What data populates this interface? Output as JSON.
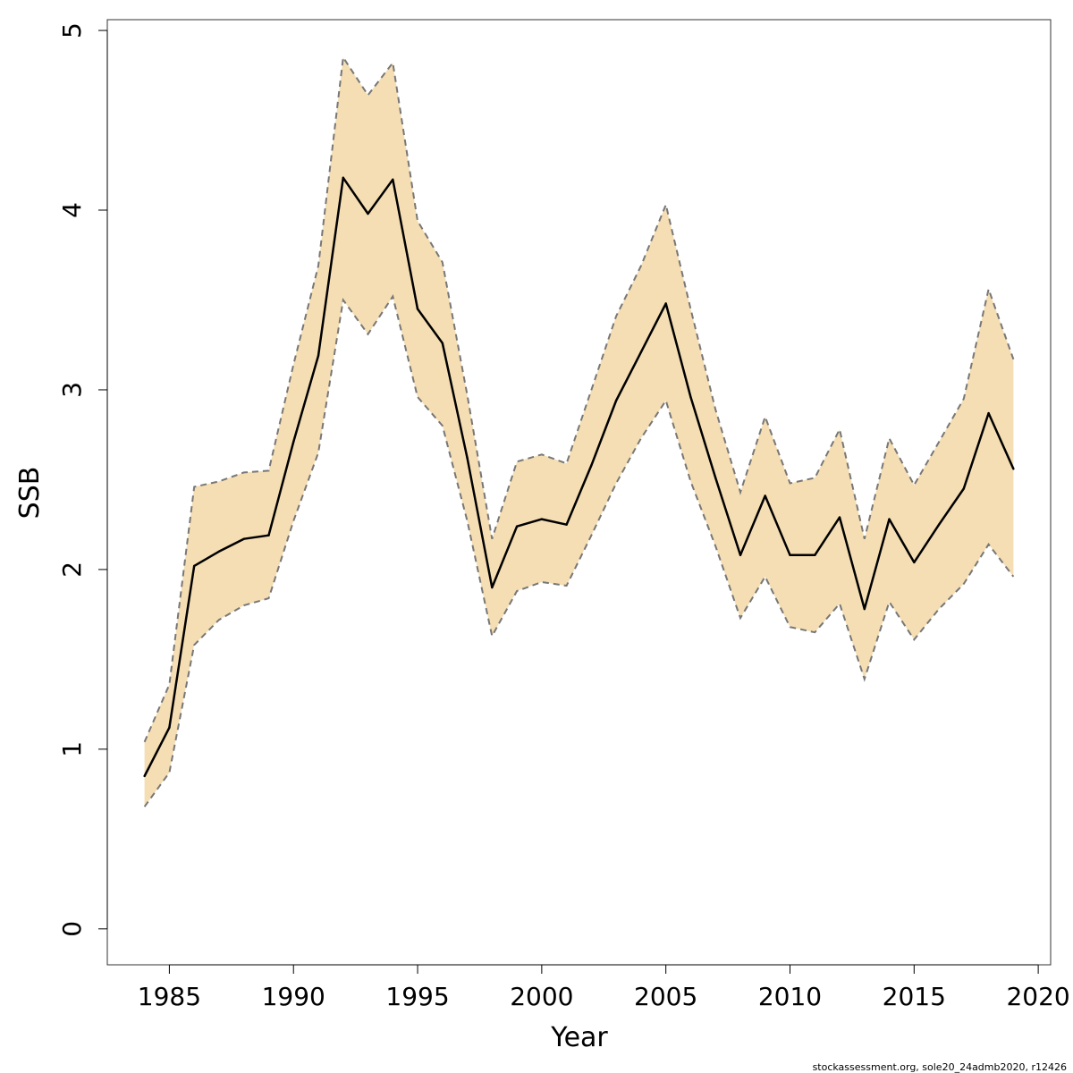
{
  "chart_data": {
    "type": "line",
    "xlabel": "Year",
    "ylabel": "SSB",
    "xlim": [
      1982.5,
      2020.5
    ],
    "ylim": [
      -0.2,
      5.06
    ],
    "x_ticks": [
      1985,
      1990,
      1995,
      2000,
      2005,
      2010,
      2015,
      2020
    ],
    "y_ticks": [
      0,
      1,
      2,
      3,
      4,
      5
    ],
    "x": [
      1984,
      1985,
      1986,
      1987,
      1988,
      1989,
      1990,
      1991,
      1992,
      1993,
      1994,
      1995,
      1996,
      1997,
      1998,
      1999,
      2000,
      2001,
      2002,
      2003,
      2004,
      2005,
      2006,
      2007,
      2008,
      2009,
      2010,
      2011,
      2012,
      2013,
      2014,
      2015,
      2016,
      2017,
      2018,
      2019
    ],
    "band_lower": [
      0.68,
      0.87,
      1.58,
      1.72,
      1.8,
      1.84,
      2.27,
      2.65,
      3.5,
      3.31,
      3.52,
      2.96,
      2.8,
      2.27,
      1.63,
      1.88,
      1.93,
      1.91,
      2.19,
      2.48,
      2.73,
      2.94,
      2.49,
      2.13,
      1.73,
      1.96,
      1.68,
      1.65,
      1.81,
      1.39,
      1.82,
      1.61,
      1.78,
      1.92,
      2.14,
      1.96
    ],
    "series": [
      {
        "values": [
          0.85,
          1.12,
          2.02,
          2.1,
          2.17,
          2.19,
          2.71,
          3.19,
          4.18,
          3.98,
          4.17,
          3.45,
          3.26,
          2.62,
          1.9,
          2.24,
          2.28,
          2.25,
          2.58,
          2.94,
          3.21,
          3.48,
          2.96,
          2.51,
          2.08,
          2.41,
          2.08,
          2.08,
          2.29,
          1.78,
          2.28,
          2.04,
          2.25,
          2.45,
          2.87,
          2.56
        ]
      },
      {
        "style": "dashed",
        "values": [
          1.04,
          1.36,
          2.46,
          2.49,
          2.54,
          2.55,
          3.14,
          3.69,
          4.85,
          4.64,
          4.82,
          3.94,
          3.71,
          2.97,
          2.17,
          2.6,
          2.64,
          2.59,
          3.0,
          3.41,
          3.69,
          4.03,
          3.45,
          2.89,
          2.43,
          2.85,
          2.48,
          2.51,
          2.78,
          2.17,
          2.73,
          2.47,
          2.71,
          2.95,
          3.56,
          3.17
        ]
      }
    ],
    "colors": {
      "band": "#f5deb3",
      "line": "#000000",
      "dashed": "#777777"
    }
  },
  "footer_text": "stockassessment.org, sole20_24admb2020, r12426"
}
